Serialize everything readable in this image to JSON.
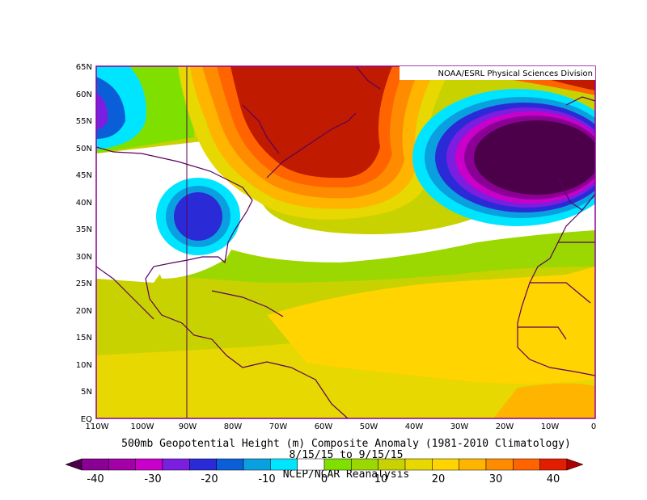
{
  "credit": "NOAA/ESRL Physical Sciences Division",
  "title": "500mb Geopotential Height (m) Composite Anomaly (1981-2010 Climatology)",
  "date_range": "8/15/15 to 9/15/15",
  "source": "NCEP/NCAR Reanalysis",
  "lat_labels": [
    "65N",
    "60N",
    "55N",
    "50N",
    "45N",
    "40N",
    "35N",
    "30N",
    "25N",
    "20N",
    "15N",
    "10N",
    "5N",
    "EQ"
  ],
  "lon_labels": [
    "110W",
    "100W",
    "90W",
    "80W",
    "70W",
    "60W",
    "50W",
    "40W",
    "30W",
    "20W",
    "10W",
    "0"
  ],
  "colorbar": {
    "colors": [
      "#4b0049",
      "#8b0094",
      "#a300a8",
      "#c900c9",
      "#7a1ee0",
      "#2a2ad6",
      "#0a5fd8",
      "#0aa0e0",
      "#00e5ff",
      "#ffffff",
      "#7fe000",
      "#9bd700",
      "#c8d200",
      "#e6d800",
      "#ffd400",
      "#ffb400",
      "#ff8c00",
      "#ff6400",
      "#e11f00",
      "#b00000"
    ],
    "tick_labels": [
      "-40",
      "-30",
      "-20",
      "-10",
      "0",
      "10",
      "20",
      "30",
      "40"
    ]
  },
  "map_colors": {
    "background": "#c8d200",
    "yellow": "#ffd400",
    "orange": "#ff8c00",
    "white": "#ffffff",
    "frame": "#8b0094",
    "coast": "#5a0060"
  }
}
